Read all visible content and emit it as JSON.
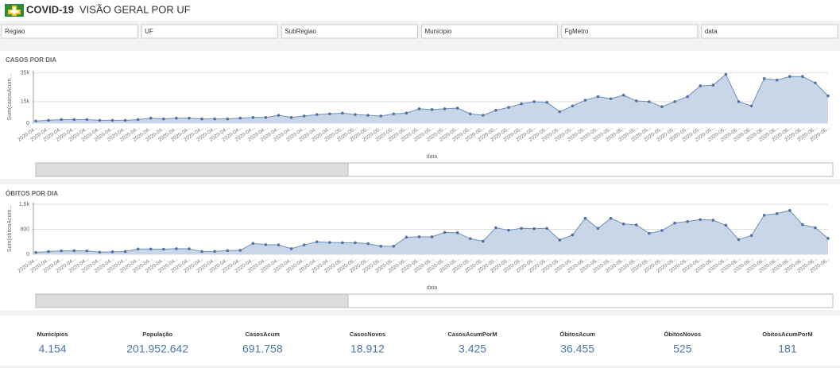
{
  "header": {
    "brand": "COVID-19",
    "title": "VISÃO GERAL POR UF"
  },
  "filters": [
    "Regiao",
    "UF",
    "SubRegiao",
    "Municipio",
    "FgMetro",
    "data"
  ],
  "chart_data": [
    {
      "type": "area",
      "title": "CASOS POR DIA",
      "y_label": "Sum(casosAcum...",
      "x_label": "data",
      "color": "#6f8fb8",
      "fill": "#c9d6e7",
      "categories": [
        "2020-04...",
        "2020-04...",
        "2020-04...",
        "2020-04...",
        "2020-04...",
        "2020-04...",
        "2020-04...",
        "2020-04...",
        "2020-04...",
        "2020-04...",
        "2020-04...",
        "2020-04...",
        "2020-04...",
        "2020-04...",
        "2020-04...",
        "2020-04...",
        "2020-04...",
        "2020-04...",
        "2020-04...",
        "2020-04...",
        "2020-04...",
        "2020-04...",
        "2020-04...",
        "2020-04...",
        "2020-05...",
        "2020-05...",
        "2020-05...",
        "2020-05...",
        "2020-05...",
        "2020-05...",
        "2020-05...",
        "2020-05...",
        "2020-05...",
        "2020-05...",
        "2020-05...",
        "2020-05...",
        "2020-05...",
        "2020-05...",
        "2020-05...",
        "2020-05...",
        "2020-05...",
        "2020-05...",
        "2020-05...",
        "2020-05...",
        "2020-05...",
        "2020-05...",
        "2020-05...",
        "2020-05...",
        "2020-05...",
        "2020-05...",
        "2020-05...",
        "2020-05...",
        "2020-05...",
        "2020-05...",
        "2020-05...",
        "2020-06...",
        "2020-06...",
        "2020-06...",
        "2020-06...",
        "2020-06...",
        "2020-06...",
        "2020-06...",
        "2020-06..."
      ],
      "values": [
        1500,
        2000,
        2500,
        2500,
        2500,
        2000,
        2000,
        2000,
        2500,
        3500,
        3000,
        3500,
        3500,
        3000,
        3000,
        3000,
        3500,
        4000,
        4000,
        5500,
        4000,
        5000,
        6000,
        6500,
        7000,
        6000,
        5500,
        5000,
        6500,
        7000,
        10000,
        9500,
        10000,
        10500,
        6500,
        5500,
        9000,
        11000,
        13500,
        15000,
        14500,
        8000,
        12000,
        16000,
        18500,
        17000,
        19500,
        15500,
        15000,
        11500,
        15000,
        18500,
        26000,
        26500,
        34000,
        15000,
        12000,
        31000,
        30000,
        32500,
        32500,
        28000,
        19000
      ],
      "ylim": [
        0,
        36500
      ],
      "yticks": [
        0,
        {
          "value": 15000,
          "label": "15k"
        },
        {
          "value": 35000,
          "label": "35k"
        }
      ],
      "grid": true
    },
    {
      "type": "area",
      "title": "ÓBITOS POR DIA",
      "y_label": "Sum(obitosAcum...",
      "x_label": "data",
      "color": "#6f8fb8",
      "fill": "#c9d6e7",
      "categories": [
        "2020-04...",
        "2020-04...",
        "2020-04...",
        "2020-04...",
        "2020-04...",
        "2020-04...",
        "2020-04...",
        "2020-04...",
        "2020-04...",
        "2020-04...",
        "2020-04...",
        "2020-04...",
        "2020-04...",
        "2020-04...",
        "2020-04...",
        "2020-04...",
        "2020-04...",
        "2020-04...",
        "2020-04...",
        "2020-04...",
        "2020-04...",
        "2020-04...",
        "2020-04...",
        "2020-04...",
        "2020-05...",
        "2020-05...",
        "2020-05...",
        "2020-05...",
        "2020-05...",
        "2020-05...",
        "2020-05...",
        "2020-05...",
        "2020-05...",
        "2020-05...",
        "2020-05...",
        "2020-05...",
        "2020-05...",
        "2020-05...",
        "2020-05...",
        "2020-05...",
        "2020-05...",
        "2020-05...",
        "2020-05...",
        "2020-05...",
        "2020-05...",
        "2020-05...",
        "2020-05...",
        "2020-05...",
        "2020-05...",
        "2020-05...",
        "2020-05...",
        "2020-05...",
        "2020-05...",
        "2020-05...",
        "2020-05...",
        "2020-06...",
        "2020-06...",
        "2020-06...",
        "2020-06...",
        "2020-06...",
        "2020-06...",
        "2020-06...",
        "2020-06..."
      ],
      "values": [
        60,
        90,
        110,
        115,
        110,
        70,
        80,
        90,
        170,
        170,
        165,
        180,
        175,
        90,
        95,
        120,
        130,
        350,
        310,
        300,
        180,
        300,
        400,
        380,
        370,
        370,
        340,
        260,
        260,
        550,
        560,
        560,
        700,
        690,
        500,
        420,
        850,
        770,
        830,
        820,
        830,
        460,
        620,
        1150,
        830,
        1150,
        970,
        940,
        670,
        760,
        1000,
        1050,
        1110,
        1090,
        930,
        470,
        600,
        1250,
        1300,
        1400,
        950,
        850,
        510
      ],
      "ylim": [
        0,
        1650
      ],
      "yticks": [
        0,
        800,
        {
          "value": 1600,
          "label": "1,6k"
        }
      ],
      "grid": true
    }
  ],
  "kpis": [
    {
      "label": "Municípios",
      "value": "4.154"
    },
    {
      "label": "População",
      "value": "201.952.642"
    },
    {
      "label": "CasosAcum",
      "value": "691.758"
    },
    {
      "label": "CasosNovos",
      "value": "18.912"
    },
    {
      "label": "CasosAcumPorM",
      "value": "3.425"
    },
    {
      "label": "ÓbitosAcum",
      "value": "36.455"
    },
    {
      "label": "ÓbitosNovos",
      "value": "525"
    },
    {
      "label": "ObitosAcumPorM",
      "value": "181"
    }
  ]
}
